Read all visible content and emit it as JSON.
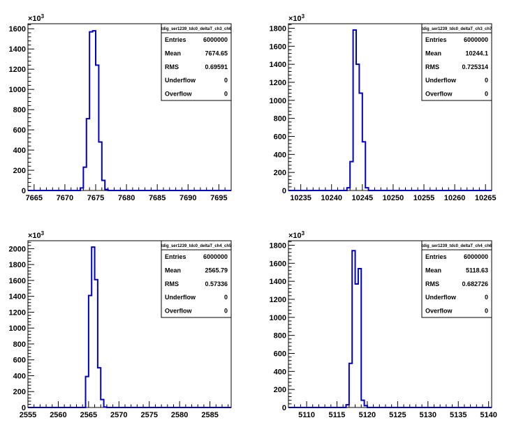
{
  "chart_data": [
    {
      "type": "histogram",
      "title": "tdig_ser1239_tdc0_deltaT_ch3_ch6",
      "xlim": [
        7664,
        7697
      ],
      "ylim": [
        0,
        1650
      ],
      "y_exponent": "3",
      "x_ticks": [
        7665,
        7670,
        7675,
        7680,
        7685,
        7690,
        7695
      ],
      "y_ticks": [
        0,
        200,
        400,
        600,
        800,
        1000,
        1200,
        1400,
        1600
      ],
      "y_tick_labels": [
        "0",
        "200",
        "400",
        "600",
        "800",
        "1000",
        "1200",
        "1400",
        "1600"
      ],
      "bin_width": 0.5,
      "bins": [
        {
          "x": 7672.5,
          "y": 25
        },
        {
          "x": 7673.0,
          "y": 230
        },
        {
          "x": 7673.5,
          "y": 710
        },
        {
          "x": 7674.0,
          "y": 1570
        },
        {
          "x": 7674.5,
          "y": 1580
        },
        {
          "x": 7675.0,
          "y": 1240
        },
        {
          "x": 7675.5,
          "y": 480
        },
        {
          "x": 7676.0,
          "y": 100
        },
        {
          "x": 7676.5,
          "y": 10
        }
      ],
      "stats": [
        {
          "label": "Entries",
          "value": "6000000"
        },
        {
          "label": "Mean",
          "value": "7674.65"
        },
        {
          "label": "RMS",
          "value": "0.69591"
        },
        {
          "label": "Underflow",
          "value": "0"
        },
        {
          "label": "Overflow",
          "value": "0"
        }
      ],
      "line_color": "#0000cc"
    },
    {
      "type": "histogram",
      "title": "tdig_ser1239_tdc0_deltaT_ch3_ch7",
      "xlim": [
        10233,
        10266
      ],
      "ylim": [
        0,
        1850
      ],
      "y_exponent": "3",
      "x_ticks": [
        10235,
        10240,
        10245,
        10250,
        10255,
        10260,
        10265
      ],
      "y_ticks": [
        0,
        200,
        400,
        600,
        800,
        1000,
        1200,
        1400,
        1600,
        1800
      ],
      "y_tick_labels": [
        "0",
        "200",
        "400",
        "600",
        "800",
        "1000",
        "1200",
        "1400",
        "1600",
        "1800"
      ],
      "bin_width": 0.5,
      "bins": [
        {
          "x": 10242.5,
          "y": 30
        },
        {
          "x": 10243.0,
          "y": 320
        },
        {
          "x": 10243.5,
          "y": 1780
        },
        {
          "x": 10244.0,
          "y": 1400
        },
        {
          "x": 10244.5,
          "y": 1080
        },
        {
          "x": 10245.0,
          "y": 540
        },
        {
          "x": 10245.5,
          "y": 30
        }
      ],
      "stats": [
        {
          "label": "Entries",
          "value": "6000000"
        },
        {
          "label": "Mean",
          "value": "10244.1"
        },
        {
          "label": "RMS",
          "value": "0.725314"
        },
        {
          "label": "Underflow",
          "value": "0"
        },
        {
          "label": "Overflow",
          "value": "0"
        }
      ],
      "line_color": "#0000cc"
    },
    {
      "type": "histogram",
      "title": "tdig_ser1239_tdc0_deltaT_ch4_ch5",
      "xlim": [
        2555,
        2588.5
      ],
      "ylim": [
        0,
        2100
      ],
      "y_exponent": "3",
      "x_ticks": [
        2555,
        2560,
        2565,
        2570,
        2575,
        2580,
        2585
      ],
      "y_ticks": [
        0,
        200,
        400,
        600,
        800,
        1000,
        1200,
        1400,
        1600,
        1800,
        2000
      ],
      "y_tick_labels": [
        "0",
        "200",
        "400",
        "600",
        "800",
        "1000",
        "1200",
        "1400",
        "1600",
        "1800",
        "2000"
      ],
      "bin_width": 0.5,
      "bins": [
        {
          "x": 2564.0,
          "y": 0
        },
        {
          "x": 2564.5,
          "y": 390
        },
        {
          "x": 2565.0,
          "y": 1410
        },
        {
          "x": 2565.5,
          "y": 2020
        },
        {
          "x": 2566.0,
          "y": 1610
        },
        {
          "x": 2566.5,
          "y": 500
        },
        {
          "x": 2567.0,
          "y": 100
        },
        {
          "x": 2567.5,
          "y": 5
        }
      ],
      "stats": [
        {
          "label": "Entries",
          "value": "6000000"
        },
        {
          "label": "Mean",
          "value": "2565.79"
        },
        {
          "label": "RMS",
          "value": "0.57336"
        },
        {
          "label": "Underflow",
          "value": "0"
        },
        {
          "label": "Overflow",
          "value": "0"
        }
      ],
      "line_color": "#0000cc"
    },
    {
      "type": "histogram",
      "title": "tdig_ser1239_tdc0_deltaT_ch4_ch6",
      "xlim": [
        5107,
        5140.5
      ],
      "ylim": [
        0,
        1850
      ],
      "y_exponent": "3",
      "x_ticks": [
        5110,
        5115,
        5120,
        5125,
        5130,
        5135,
        5140
      ],
      "y_ticks": [
        0,
        200,
        400,
        600,
        800,
        1000,
        1200,
        1400,
        1600,
        1800
      ],
      "y_tick_labels": [
        "0",
        "200",
        "400",
        "600",
        "800",
        "1000",
        "1200",
        "1400",
        "1600",
        "1800"
      ],
      "bin_width": 0.5,
      "bins": [
        {
          "x": 5116.5,
          "y": 30
        },
        {
          "x": 5117.0,
          "y": 490
        },
        {
          "x": 5117.5,
          "y": 1740
        },
        {
          "x": 5118.0,
          "y": 1370
        },
        {
          "x": 5118.5,
          "y": 1540
        },
        {
          "x": 5119.0,
          "y": 80
        },
        {
          "x": 5119.5,
          "y": 20
        }
      ],
      "stats": [
        {
          "label": "Entries",
          "value": "6000000"
        },
        {
          "label": "Mean",
          "value": "5118.63"
        },
        {
          "label": "RMS",
          "value": "0.682726"
        },
        {
          "label": "Underflow",
          "value": "0"
        },
        {
          "label": "Overflow",
          "value": "0"
        }
      ],
      "line_color": "#0000cc"
    }
  ]
}
